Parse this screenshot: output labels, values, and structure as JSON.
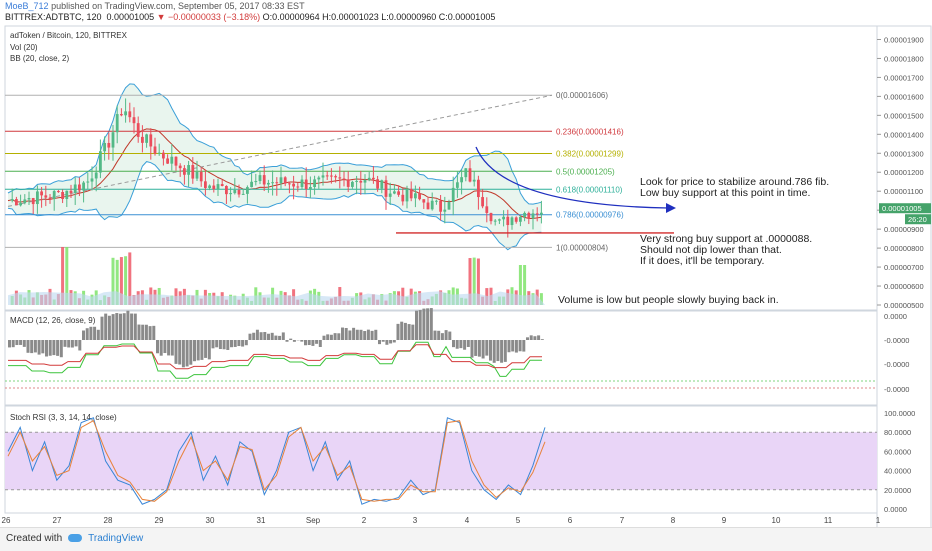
{
  "header": {
    "author": "MoeB_712",
    "published": "published on TradingView.com, September 05, 2017 08:33 EST",
    "symbol": "BITTREX:ADTBTC, 120",
    "last": "0.00001005",
    "change": "▼ −0.00000033 (−3.18%)",
    "ohlc": "O:0.00000964 H:0.00001023 L:0.00000960 C:0.00001005"
  },
  "footer": {
    "created_with": "Created with",
    "brand": "TradingView"
  },
  "chart_data": [
    {
      "type": "candlestick",
      "title": "adToken / Bitcoin, 120, BITTREX",
      "indicators": [
        "Vol (20)",
        "BB (20, close, 2)"
      ],
      "x_tick_labels": [
        "26",
        "27",
        "28",
        "29",
        "30",
        "31",
        "Sep",
        "2",
        "3",
        "4",
        "5",
        "6",
        "7",
        "8",
        "9",
        "10",
        "11",
        "1"
      ],
      "y_tick_labels": [
        "0.00001900",
        "0.00001800",
        "0.00001700",
        "0.00001600",
        "0.00001500",
        "0.00001400",
        "0.00001300",
        "0.00001200",
        "0.00001100",
        "0.00001000",
        "0.00000900",
        "0.00000800",
        "0.00000700",
        "0.00000600",
        "0.00000500"
      ],
      "ylim": [
        5e-06,
        1.95e-05
      ],
      "close_series": [
        {
          "x": "26",
          "y": 1.05e-05
        },
        {
          "x": "27",
          "y": 1.08e-05
        },
        {
          "x": "27.6",
          "y": 1.15e-05
        },
        {
          "x": "28",
          "y": 1.35e-05
        },
        {
          "x": "28.3",
          "y": 1.55e-05
        },
        {
          "x": "28.6",
          "y": 1.4e-05
        },
        {
          "x": "29",
          "y": 1.3e-05
        },
        {
          "x": "29.5",
          "y": 1.22e-05
        },
        {
          "x": "30",
          "y": 1.12e-05
        },
        {
          "x": "30.5",
          "y": 1.11e-05
        },
        {
          "x": "31",
          "y": 1.15e-05
        },
        {
          "x": "Sep",
          "y": 1.14e-05
        },
        {
          "x": "2",
          "y": 1.17e-05
        },
        {
          "x": "2.5",
          "y": 1.1e-05
        },
        {
          "x": "3",
          "y": 1.06e-05
        },
        {
          "x": "3.5",
          "y": 1.01e-05
        },
        {
          "x": "4",
          "y": 1.2e-05
        },
        {
          "x": "4.3",
          "y": 1.06e-05
        },
        {
          "x": "4.6",
          "y": 9.2e-06
        },
        {
          "x": "5",
          "y": 9.8e-06
        },
        {
          "x": "5.5",
          "y": 1.005e-05
        }
      ],
      "fib_levels": [
        {
          "label": "0(0.00001606)",
          "value": 1.606e-05,
          "color": "#b0b0b0"
        },
        {
          "label": "0.236(0.00001416)",
          "value": 1.416e-05,
          "color": "#d0383d"
        },
        {
          "label": "0.382(0.00001299)",
          "value": 1.299e-05,
          "color": "#b4b000"
        },
        {
          "label": "0.5(0.00001205)",
          "value": 1.205e-05,
          "color": "#4caf50"
        },
        {
          "label": "0.618(0.00001110)",
          "value": 1.11e-05,
          "color": "#2fb09a"
        },
        {
          "label": "0.786(0.00000976)",
          "value": 9.76e-06,
          "color": "#3a8fd3"
        },
        {
          "label": "1(0.00000804)",
          "value": 8.04e-06,
          "color": "#b0b0b0"
        }
      ],
      "support_line": 8.8e-06,
      "price_badge": "0.00001005",
      "time_badge": "26:20",
      "annotations": [
        "Look for price to stabilize around.786 fib.",
        "Low buy support at this point in time.",
        "Very strong buy support at .0000088.",
        "Should not dip lower than that.",
        "If it does, it'll be temporary.",
        "Volume is low but people slowly buying back in."
      ],
      "colors": {
        "up": "#53b987",
        "down": "#eb4d5c",
        "vol_up": "#7ee36a",
        "vol_down": "#ef5a68",
        "bb": "#3a9fd8",
        "ma": "#c0392b",
        "arrow": "#1f2fbf"
      }
    },
    {
      "type": "bar",
      "title": "MACD (12, 26, close, 9)",
      "y_tick_labels": [
        "0.0000",
        "-0.0000",
        "-0.0000",
        "-0.0000"
      ],
      "histogram": [
        -0.2,
        -0.5,
        -0.6,
        -0.3,
        0.4,
        0.9,
        1.0,
        0.5,
        -0.5,
        -0.9,
        -0.7,
        -0.3,
        -0.2,
        0.3,
        0.2,
        0.0,
        -0.2,
        0.2,
        0.4,
        0.3,
        -0.1,
        0.6,
        1.1,
        0.3,
        -0.3,
        -0.6,
        -0.8,
        -0.4,
        0.1
      ]
    },
    {
      "type": "line",
      "title": "Stoch RSI (3, 3, 14, 14, close)",
      "y_tick_labels": [
        "100.0000",
        "80.0000",
        "60.0000",
        "40.0000",
        "20.0000",
        "0.0000"
      ],
      "ylim": [
        0,
        100
      ],
      "bands": [
        20,
        80
      ],
      "series": [
        {
          "values": [
            60,
            85,
            40,
            70,
            30,
            45,
            90,
            95,
            50,
            30,
            25,
            5,
            10,
            20,
            60,
            80,
            30,
            55,
            25,
            70,
            60,
            15,
            40,
            80,
            85,
            40,
            70,
            30,
            50,
            5,
            10,
            8,
            12,
            30,
            15,
            20,
            95,
            90,
            40,
            20,
            10,
            25,
            15,
            45,
            85
          ]
        },
        {
          "values": [
            55,
            80,
            50,
            65,
            35,
            40,
            85,
            92,
            60,
            35,
            28,
            10,
            8,
            18,
            50,
            75,
            40,
            50,
            30,
            65,
            62,
            20,
            35,
            75,
            85,
            50,
            65,
            35,
            45,
            10,
            8,
            10,
            10,
            25,
            18,
            18,
            90,
            92,
            50,
            25,
            12,
            22,
            18,
            38,
            70
          ]
        }
      ]
    }
  ]
}
